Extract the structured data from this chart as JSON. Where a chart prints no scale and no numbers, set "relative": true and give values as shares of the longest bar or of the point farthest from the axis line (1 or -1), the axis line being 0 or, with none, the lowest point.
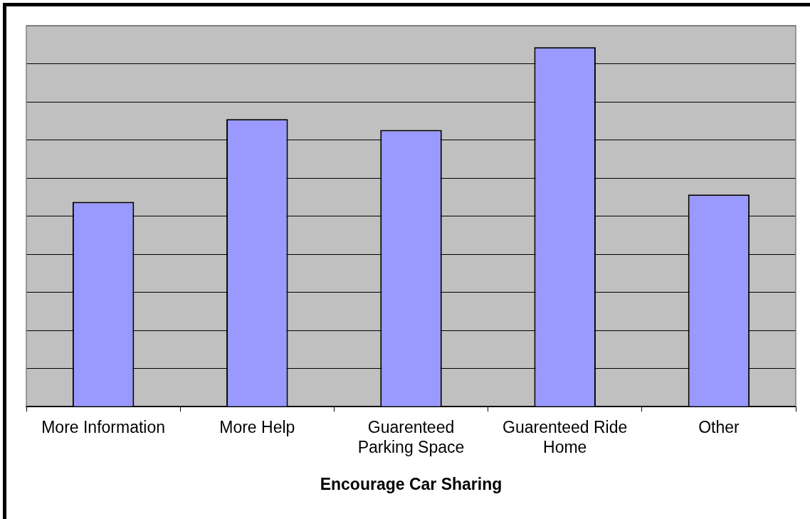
{
  "chart_data": {
    "type": "bar",
    "xlabel": "Encourage Car Sharing",
    "categories": [
      "More Information",
      "More Help",
      "Guarenteed Parking Space",
      "Guarenteed Ride Home",
      "Other"
    ],
    "values": [
      0.57,
      0.8,
      0.77,
      1,
      0.59
    ],
    "color": "#9999ff",
    "relative": true,
    "grid": "y"
  }
}
